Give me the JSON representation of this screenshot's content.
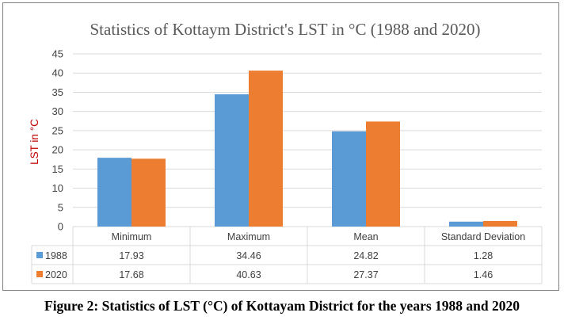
{
  "caption": "Figure 2: Statistics of LST (°C) of Kottayam District for the years 1988 and 2020",
  "chart_data": {
    "type": "bar",
    "title": "Statistics of Kottaym District's LST in °C (1988 and 2020)",
    "ylabel": "LST in °C",
    "xlabel": "",
    "ylim": [
      0,
      45
    ],
    "yticks": [
      0,
      5,
      10,
      15,
      20,
      25,
      30,
      35,
      40,
      45
    ],
    "grid": true,
    "legend": "data-table",
    "categories": [
      "Minimum",
      "Maximum",
      "Mean",
      "Standard Deviation"
    ],
    "series": [
      {
        "name": "1988",
        "color": "#5b9bd5",
        "values": [
          17.93,
          34.46,
          24.82,
          1.28
        ],
        "labels": [
          "17.93",
          "34.46",
          "24.82",
          "1.28"
        ]
      },
      {
        "name": "2020",
        "color": "#ed7d31",
        "values": [
          17.68,
          40.63,
          27.37,
          1.46
        ],
        "labels": [
          "17.68",
          "40.63",
          "27.37",
          "1.46"
        ]
      }
    ]
  }
}
